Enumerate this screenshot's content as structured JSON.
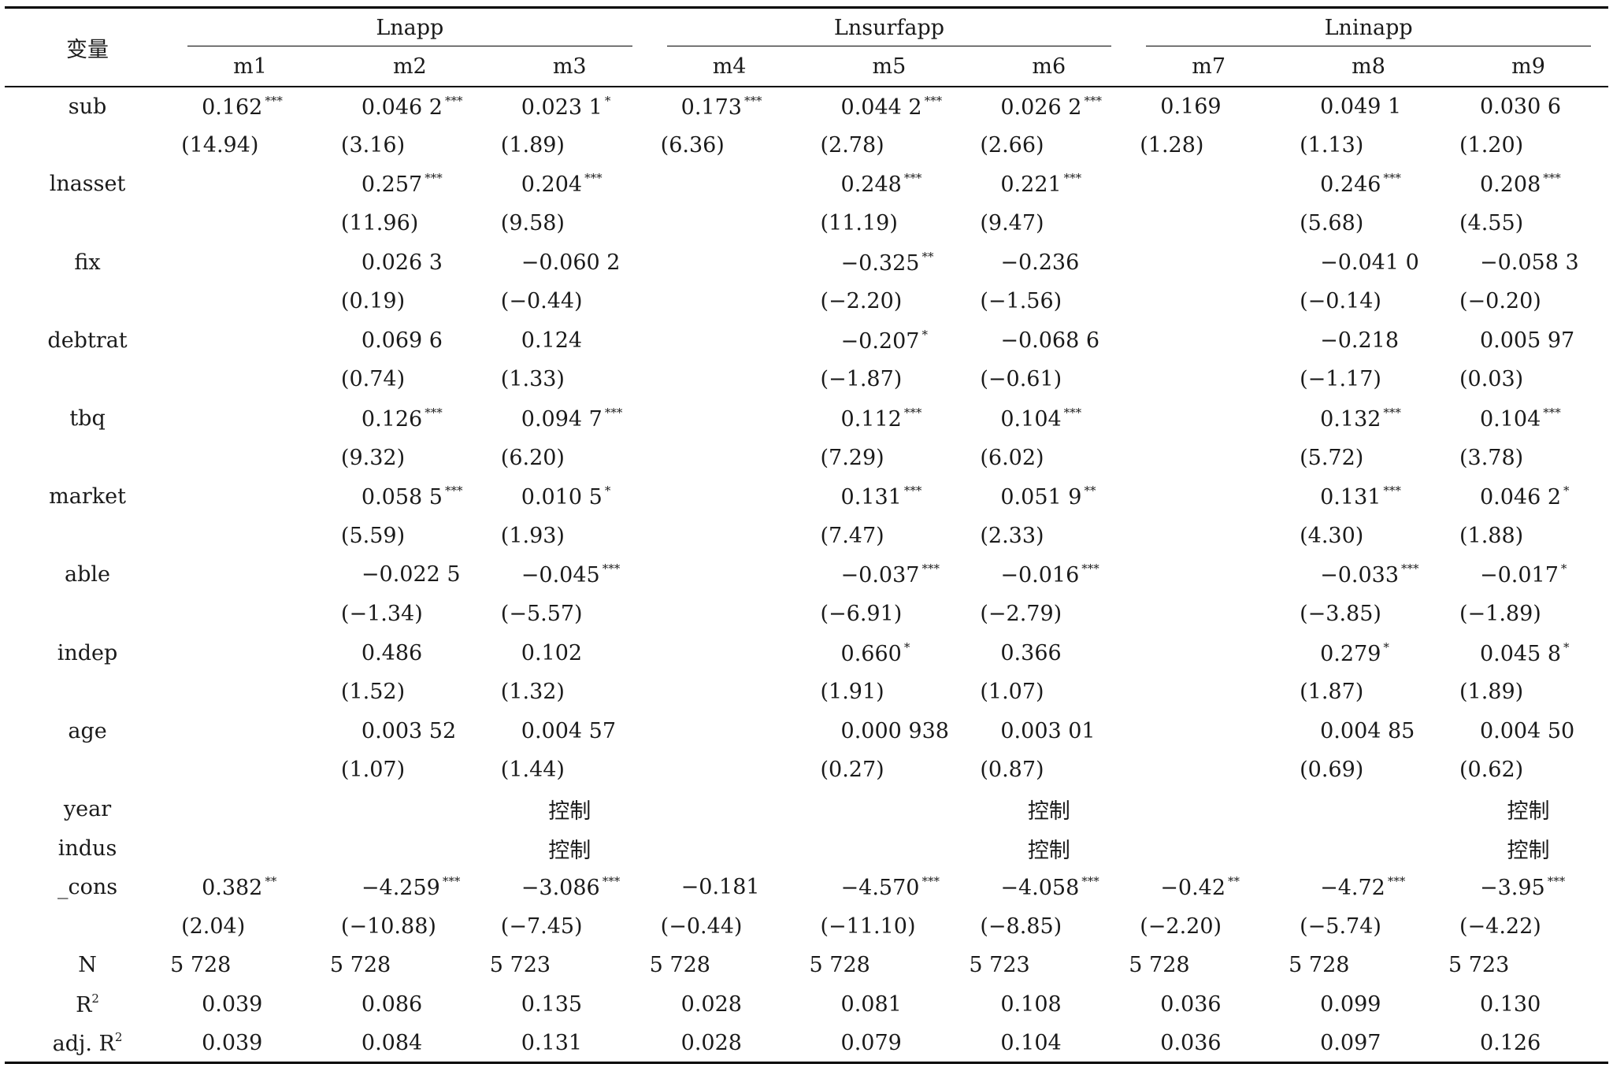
{
  "header": {
    "var_label": "变量",
    "groups": [
      "Lnapp",
      "Lnsurfapp",
      "Lninapp"
    ],
    "models": [
      "m1",
      "m2",
      "m3",
      "m4",
      "m5",
      "m6",
      "m7",
      "m8",
      "m9"
    ]
  },
  "rows": [
    {
      "label": "sub",
      "coef": [
        [
          "0.162",
          "***"
        ],
        [
          "0.046 2",
          "***"
        ],
        [
          "0.023 1",
          "*"
        ],
        [
          "0.173",
          "***"
        ],
        [
          "0.044 2",
          "***"
        ],
        [
          "0.026 2",
          "***"
        ],
        [
          "0.169",
          ""
        ],
        [
          "0.049 1",
          ""
        ],
        [
          "0.030 6",
          ""
        ]
      ],
      "t": [
        "(14.94)",
        "(3.16)",
        "(1.89)",
        "(6.36)",
        "(2.78)",
        "(2.66)",
        "(1.28)",
        "(1.13)",
        "(1.20)"
      ]
    },
    {
      "label": "lnasset",
      "coef": [
        null,
        [
          "0.257",
          "***"
        ],
        [
          "0.204",
          "***"
        ],
        null,
        [
          "0.248",
          "***"
        ],
        [
          "0.221",
          "***"
        ],
        null,
        [
          "0.246",
          "***"
        ],
        [
          "0.208",
          "***"
        ]
      ],
      "t": [
        null,
        "(11.96)",
        "(9.58)",
        null,
        "(11.19)",
        "(9.47)",
        null,
        "(5.68)",
        "(4.55)"
      ]
    },
    {
      "label": "fix",
      "coef": [
        null,
        [
          "0.026 3",
          ""
        ],
        [
          "−0.060 2",
          ""
        ],
        null,
        [
          "−0.325",
          "**"
        ],
        [
          "−0.236",
          ""
        ],
        null,
        [
          "−0.041 0",
          ""
        ],
        [
          "−0.058 3",
          ""
        ]
      ],
      "t": [
        null,
        "(0.19)",
        "(−0.44)",
        null,
        "(−2.20)",
        "(−1.56)",
        null,
        "(−0.14)",
        "(−0.20)"
      ]
    },
    {
      "label": "debtrat",
      "coef": [
        null,
        [
          "0.069 6",
          ""
        ],
        [
          "0.124",
          ""
        ],
        null,
        [
          "−0.207",
          "*"
        ],
        [
          "−0.068 6",
          ""
        ],
        null,
        [
          "−0.218",
          ""
        ],
        [
          "0.005 97",
          ""
        ]
      ],
      "t": [
        null,
        "(0.74)",
        "(1.33)",
        null,
        "(−1.87)",
        "(−0.61)",
        null,
        "(−1.17)",
        "(0.03)"
      ]
    },
    {
      "label": "tbq",
      "coef": [
        null,
        [
          "0.126",
          "***"
        ],
        [
          "0.094 7",
          "***"
        ],
        null,
        [
          "0.112",
          "***"
        ],
        [
          "0.104",
          "***"
        ],
        null,
        [
          "0.132",
          "***"
        ],
        [
          "0.104",
          "***"
        ]
      ],
      "t": [
        null,
        "(9.32)",
        "(6.20)",
        null,
        "(7.29)",
        "(6.02)",
        null,
        "(5.72)",
        "(3.78)"
      ]
    },
    {
      "label": "market",
      "coef": [
        null,
        [
          "0.058 5",
          "***"
        ],
        [
          "0.010 5",
          "*"
        ],
        null,
        [
          "0.131",
          "***"
        ],
        [
          "0.051 9",
          "**"
        ],
        null,
        [
          "0.131",
          "***"
        ],
        [
          "0.046 2",
          "*"
        ]
      ],
      "t": [
        null,
        "(5.59)",
        "(1.93)",
        null,
        "(7.47)",
        "(2.33)",
        null,
        "(4.30)",
        "(1.88)"
      ]
    },
    {
      "label": "able",
      "coef": [
        null,
        [
          "−0.022 5",
          ""
        ],
        [
          "−0.045",
          "***"
        ],
        null,
        [
          "−0.037",
          "***"
        ],
        [
          "−0.016",
          "***"
        ],
        null,
        [
          "−0.033",
          "***"
        ],
        [
          "−0.017",
          "*"
        ]
      ],
      "t": [
        null,
        "(−1.34)",
        "(−5.57)",
        null,
        "(−6.91)",
        "(−2.79)",
        null,
        "(−3.85)",
        "(−1.89)"
      ]
    },
    {
      "label": "indep",
      "coef": [
        null,
        [
          "0.486",
          ""
        ],
        [
          "0.102",
          ""
        ],
        null,
        [
          "0.660",
          "*"
        ],
        [
          "0.366",
          ""
        ],
        null,
        [
          "0.279",
          "*"
        ],
        [
          "0.045 8",
          "*"
        ]
      ],
      "t": [
        null,
        "(1.52)",
        "(1.32)",
        null,
        "(1.91)",
        "(1.07)",
        null,
        "(1.87)",
        "(1.89)"
      ]
    },
    {
      "label": "age",
      "coef": [
        null,
        [
          "0.003 52",
          ""
        ],
        [
          "0.004 57",
          ""
        ],
        null,
        [
          "0.000 938",
          ""
        ],
        [
          "0.003 01",
          ""
        ],
        null,
        [
          "0.004 85",
          ""
        ],
        [
          "0.004 50",
          ""
        ]
      ],
      "t": [
        null,
        "(1.07)",
        "(1.44)",
        null,
        "(0.27)",
        "(0.87)",
        null,
        "(0.69)",
        "(0.62)"
      ]
    }
  ],
  "controls": [
    {
      "label": "year",
      "text": "控制"
    },
    {
      "label": "indus",
      "text": "控制"
    }
  ],
  "cons": {
    "label": "_cons",
    "coef": [
      [
        "0.382",
        "**"
      ],
      [
        "−4.259",
        "***"
      ],
      [
        "−3.086",
        "***"
      ],
      [
        "−0.181",
        ""
      ],
      [
        "−4.570",
        "***"
      ],
      [
        "−4.058",
        "***"
      ],
      [
        "−0.42",
        "**"
      ],
      [
        "−4.72",
        "***"
      ],
      [
        "−3.95",
        "***"
      ]
    ],
    "t": [
      "(2.04)",
      "(−10.88)",
      "(−7.45)",
      "(−0.44)",
      "(−11.10)",
      "(−8.85)",
      "(−2.20)",
      "(−5.74)",
      "(−4.22)"
    ]
  },
  "stats": {
    "n_label": "N",
    "n": [
      "5 728",
      "5 728",
      "5 723",
      "5 728",
      "5 728",
      "5 723",
      "5 728",
      "5 728",
      "5 723"
    ],
    "r2_label": "R",
    "r2_sup": "2",
    "r2": [
      "0.039",
      "0.086",
      "0.135",
      "0.028",
      "0.081",
      "0.108",
      "0.036",
      "0.099",
      "0.130"
    ],
    "adjr2_label": "adj. R",
    "adjr2_sup": "2",
    "adjr2": [
      "0.039",
      "0.084",
      "0.131",
      "0.028",
      "0.079",
      "0.104",
      "0.036",
      "0.097",
      "0.126"
    ]
  }
}
